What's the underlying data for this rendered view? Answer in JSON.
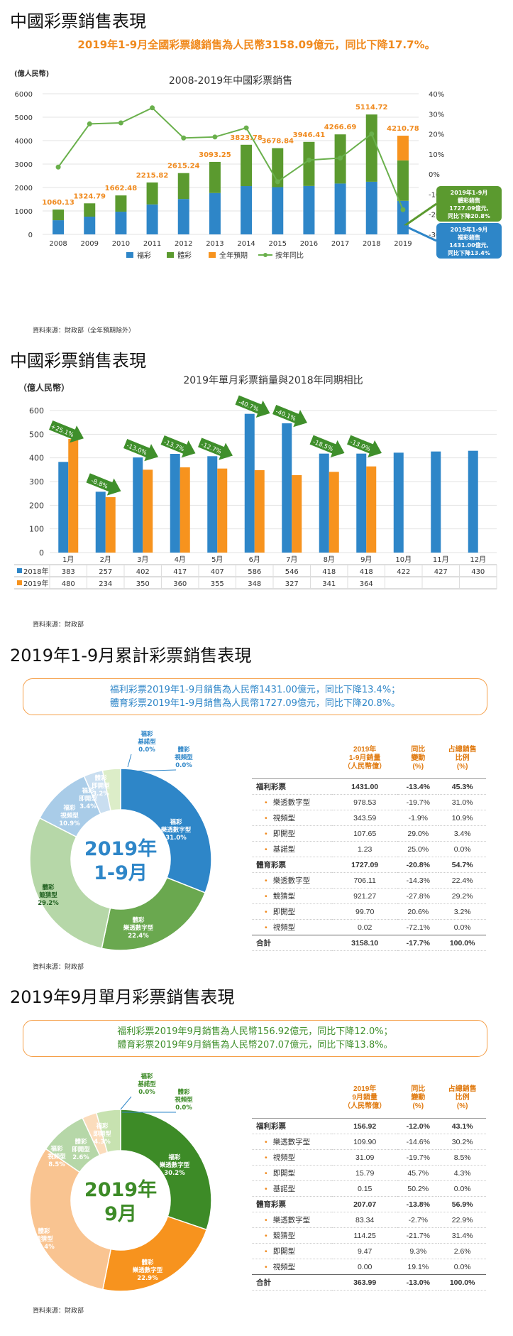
{
  "section1": {
    "title": "中國彩票銷售表現",
    "headline": "2019年1-9月全國彩票總銷售為人民幣3158.09億元，同比下降17.7%。",
    "source": "資料來源：財政部（全年預期除外）"
  },
  "section2": {
    "title": "中國彩票銷售表現",
    "source": "資料來源：財政部"
  },
  "section3": {
    "title": "2019年1-9月累計彩票銷售表現",
    "callout_line1": "福利彩票2019年1-9月銷售為人民幣1431.00億元，同比下降13.4%；",
    "callout_line2": "體育彩票2019年1-9月銷售為人民幣1727.09億元，同比下降20.8%。",
    "source": "資料來源：財政部",
    "table": {
      "headers": [
        "2019年\n1-9月銷量\n（人民幣億）",
        "同比\n變動\n(%)",
        "占總銷售\n比例\n(%)"
      ],
      "rows": [
        {
          "kind": "cat",
          "label": "福利彩票",
          "v": "1431.00",
          "c": "-13.4%",
          "s": "45.3%"
        },
        {
          "kind": "sub",
          "label": "樂透數字型",
          "v": "978.53",
          "c": "-19.7%",
          "s": "31.0%"
        },
        {
          "kind": "sub",
          "label": "視頻型",
          "v": "343.59",
          "c": "-1.9%",
          "s": "10.9%"
        },
        {
          "kind": "sub",
          "label": "即開型",
          "v": "107.65",
          "c": "29.0%",
          "s": "3.4%"
        },
        {
          "kind": "sub",
          "label": "基諾型",
          "v": "1.23",
          "c": "25.0%",
          "s": "0.0%"
        },
        {
          "kind": "cat",
          "label": "體育彩票",
          "v": "1727.09",
          "c": "-20.8%",
          "s": "54.7%"
        },
        {
          "kind": "sub",
          "label": "樂透數字型",
          "v": "706.11",
          "c": "-14.3%",
          "s": "22.4%"
        },
        {
          "kind": "sub",
          "label": "競猜型",
          "v": "921.27",
          "c": "-27.8%",
          "s": "29.2%"
        },
        {
          "kind": "sub",
          "label": "即開型",
          "v": "99.70",
          "c": "20.6%",
          "s": "3.2%"
        },
        {
          "kind": "sub",
          "label": "視頻型",
          "v": "0.02",
          "c": "-72.1%",
          "s": "0.0%"
        },
        {
          "kind": "total",
          "label": "合計",
          "v": "3158.10",
          "c": "-17.7%",
          "s": "100.0%"
        }
      ]
    }
  },
  "section4": {
    "title": "2019年9月單月彩票銷售表現",
    "callout_line1": "福利彩票2019年9月銷售為人民幣156.92億元，同比下降12.0%；",
    "callout_line2": "體育彩票2019年9月銷售為人民幣207.07億元，同比下降13.8%。",
    "source": "資料來源：財政部",
    "table": {
      "headers": [
        "2019年\n9月銷量\n（人民幣億）",
        "同比\n變動\n(%)",
        "占總銷售\n比例\n(%)"
      ],
      "rows": [
        {
          "kind": "cat",
          "label": "福利彩票",
          "v": "156.92",
          "c": "-12.0%",
          "s": "43.1%"
        },
        {
          "kind": "sub",
          "label": "樂透數字型",
          "v": "109.90",
          "c": "-14.6%",
          "s": "30.2%"
        },
        {
          "kind": "sub",
          "label": "視頻型",
          "v": "31.09",
          "c": "-19.7%",
          "s": "8.5%"
        },
        {
          "kind": "sub",
          "label": "即開型",
          "v": "15.79",
          "c": "45.7%",
          "s": "4.3%"
        },
        {
          "kind": "sub",
          "label": "基諾型",
          "v": "0.15",
          "c": "50.2%",
          "s": "0.0%"
        },
        {
          "kind": "cat",
          "label": "體育彩票",
          "v": "207.07",
          "c": "-13.8%",
          "s": "56.9%"
        },
        {
          "kind": "sub",
          "label": "樂透數字型",
          "v": "83.34",
          "c": "-2.7%",
          "s": "22.9%"
        },
        {
          "kind": "sub",
          "label": "競猜型",
          "v": "114.25",
          "c": "-21.7%",
          "s": "31.4%"
        },
        {
          "kind": "sub",
          "label": "即開型",
          "v": "9.47",
          "c": "9.3%",
          "s": "2.6%"
        },
        {
          "kind": "sub",
          "label": "視頻型",
          "v": "0.00",
          "c": "19.1%",
          "s": "0.0%"
        },
        {
          "kind": "total",
          "label": "合計",
          "v": "363.99",
          "c": "-13.0%",
          "s": "100.0%"
        }
      ]
    }
  },
  "colors": {
    "blue": "#2e86c8",
    "green": "#5b9a2f",
    "orange": "#f7931e",
    "lightgreen": "#b4d78e",
    "lightblue": "#a8cbe8",
    "peach": "#f9c491",
    "arrow_green": "#3f8f2b"
  },
  "chart_data": [
    {
      "type": "bar",
      "title": "2008-2019年中國彩票銷售",
      "ylabel": "(億人民幣)",
      "ylim": [
        0,
        6000
      ],
      "y2lim": [
        -30,
        40
      ],
      "categories": [
        "2008",
        "2009",
        "2010",
        "2011",
        "2012",
        "2013",
        "2014",
        "2015",
        "2016",
        "2017",
        "2018",
        "2019"
      ],
      "series": [
        {
          "name": "福彩",
          "values": [
            604,
            757,
            968,
            1278,
            1510,
            1765,
            2060,
            2015,
            2065,
            2170,
            2245,
            1431
          ]
        },
        {
          "name": "體彩",
          "values": [
            456,
            568,
            694,
            938,
            1105,
            1328,
            1764,
            1664,
            1881,
            2097,
            2870,
            1727.09
          ]
        },
        {
          "name": "全年預期",
          "values": [
            0,
            0,
            0,
            0,
            0,
            0,
            0,
            0,
            0,
            0,
            0,
            1052.69
          ]
        },
        {
          "name": "按年同比",
          "values": [
            3.5,
            25,
            25.5,
            33,
            18,
            18.5,
            23,
            -3.8,
            7,
            8,
            20,
            -17.7
          ]
        }
      ],
      "totals": [
        "1060.13",
        "1324.79",
        "1662.48",
        "2215.82",
        "2615.24",
        "3093.25",
        "3823.78",
        "3678.84",
        "3946.41",
        "4266.69",
        "5114.72",
        "4210.78"
      ],
      "annotations": [
        {
          "line1": "2019年1-9月",
          "line2": "體彩銷售",
          "line3": "1727.09億元,",
          "line4": "同比下降20.8%"
        },
        {
          "line1": "2019年1-9月",
          "line2": "福彩銷售",
          "line3": "1431.00億元,",
          "line4": "同比下降13.4%"
        }
      ]
    },
    {
      "type": "bar",
      "title": "2019年單月彩票銷量與2018年同期相比",
      "ylabel": "（億人民幣）",
      "ylim": [
        0,
        600
      ],
      "categories": [
        "1月",
        "2月",
        "3月",
        "4月",
        "5月",
        "6月",
        "7月",
        "8月",
        "9月",
        "10月",
        "11月",
        "12月"
      ],
      "series": [
        {
          "name": "2018年",
          "values": [
            383,
            257,
            402,
            417,
            407,
            586,
            546,
            418,
            418,
            422,
            427,
            430
          ]
        },
        {
          "name": "2019年",
          "values": [
            480,
            234,
            350,
            360,
            355,
            348,
            327,
            341,
            364,
            null,
            null,
            null
          ]
        }
      ],
      "changes": [
        "+25.1%",
        "-8.8%",
        "-13.0%",
        "-13.7%",
        "-12.7%",
        "-40.7%",
        "-40.1%",
        "-18.5%",
        "-13.0%"
      ],
      "table_rows": [
        {
          "name": "2018年",
          "cells": [
            "383",
            "257",
            "402",
            "417",
            "407",
            "586",
            "546",
            "418",
            "418",
            "422",
            "427",
            "430"
          ]
        },
        {
          "name": "2019年",
          "cells": [
            "480",
            "234",
            "350",
            "360",
            "355",
            "348",
            "327",
            "341",
            "364",
            "",
            "",
            ""
          ]
        }
      ]
    },
    {
      "type": "pie",
      "center_line1": "2019年",
      "center_line2": "1-9月",
      "slices": [
        {
          "label1": "福彩",
          "label2": "樂透數字型",
          "pct": "31.0%",
          "value": 31.0
        },
        {
          "label1": "體彩",
          "label2": "樂透數字型",
          "pct": "22.4%",
          "value": 22.4
        },
        {
          "label1": "體彩",
          "label2": "競猜型",
          "pct": "29.2%",
          "value": 29.2
        },
        {
          "label1": "福彩",
          "label2": "視頻型",
          "pct": "10.9%",
          "value": 10.9
        },
        {
          "label1": "福彩",
          "label2": "即開型",
          "pct": "3.4%",
          "value": 3.4
        },
        {
          "label1": "體彩",
          "label2": "即開型",
          "pct": "3.2%",
          "value": 3.2
        },
        {
          "label1": "福彩",
          "label2": "基諾型",
          "pct": "0.0%",
          "value": 0.0
        },
        {
          "label1": "體彩",
          "label2": "視頻型",
          "pct": "0.0%",
          "value": 0.0
        }
      ]
    },
    {
      "type": "pie",
      "center_line1": "2019年",
      "center_line2": "9月",
      "slices": [
        {
          "label1": "福彩",
          "label2": "樂透數字型",
          "pct": "30.2%",
          "value": 30.2
        },
        {
          "label1": "體彩",
          "label2": "樂透數字型",
          "pct": "22.9%",
          "value": 22.9
        },
        {
          "label1": "體彩",
          "label2": "競猜型",
          "pct": "31.4%",
          "value": 31.4
        },
        {
          "label1": "福彩",
          "label2": "視頻型",
          "pct": "8.5%",
          "value": 8.5
        },
        {
          "label1": "體彩",
          "label2": "即開型",
          "pct": "2.6%",
          "value": 2.6
        },
        {
          "label1": "福彩",
          "label2": "即開型",
          "pct": "4.3%",
          "value": 4.3
        },
        {
          "label1": "福彩",
          "label2": "基諾型",
          "pct": "0.0%",
          "value": 0.0
        },
        {
          "label1": "體彩",
          "label2": "視頻型",
          "pct": "0.0%",
          "value": 0.0
        }
      ]
    }
  ]
}
